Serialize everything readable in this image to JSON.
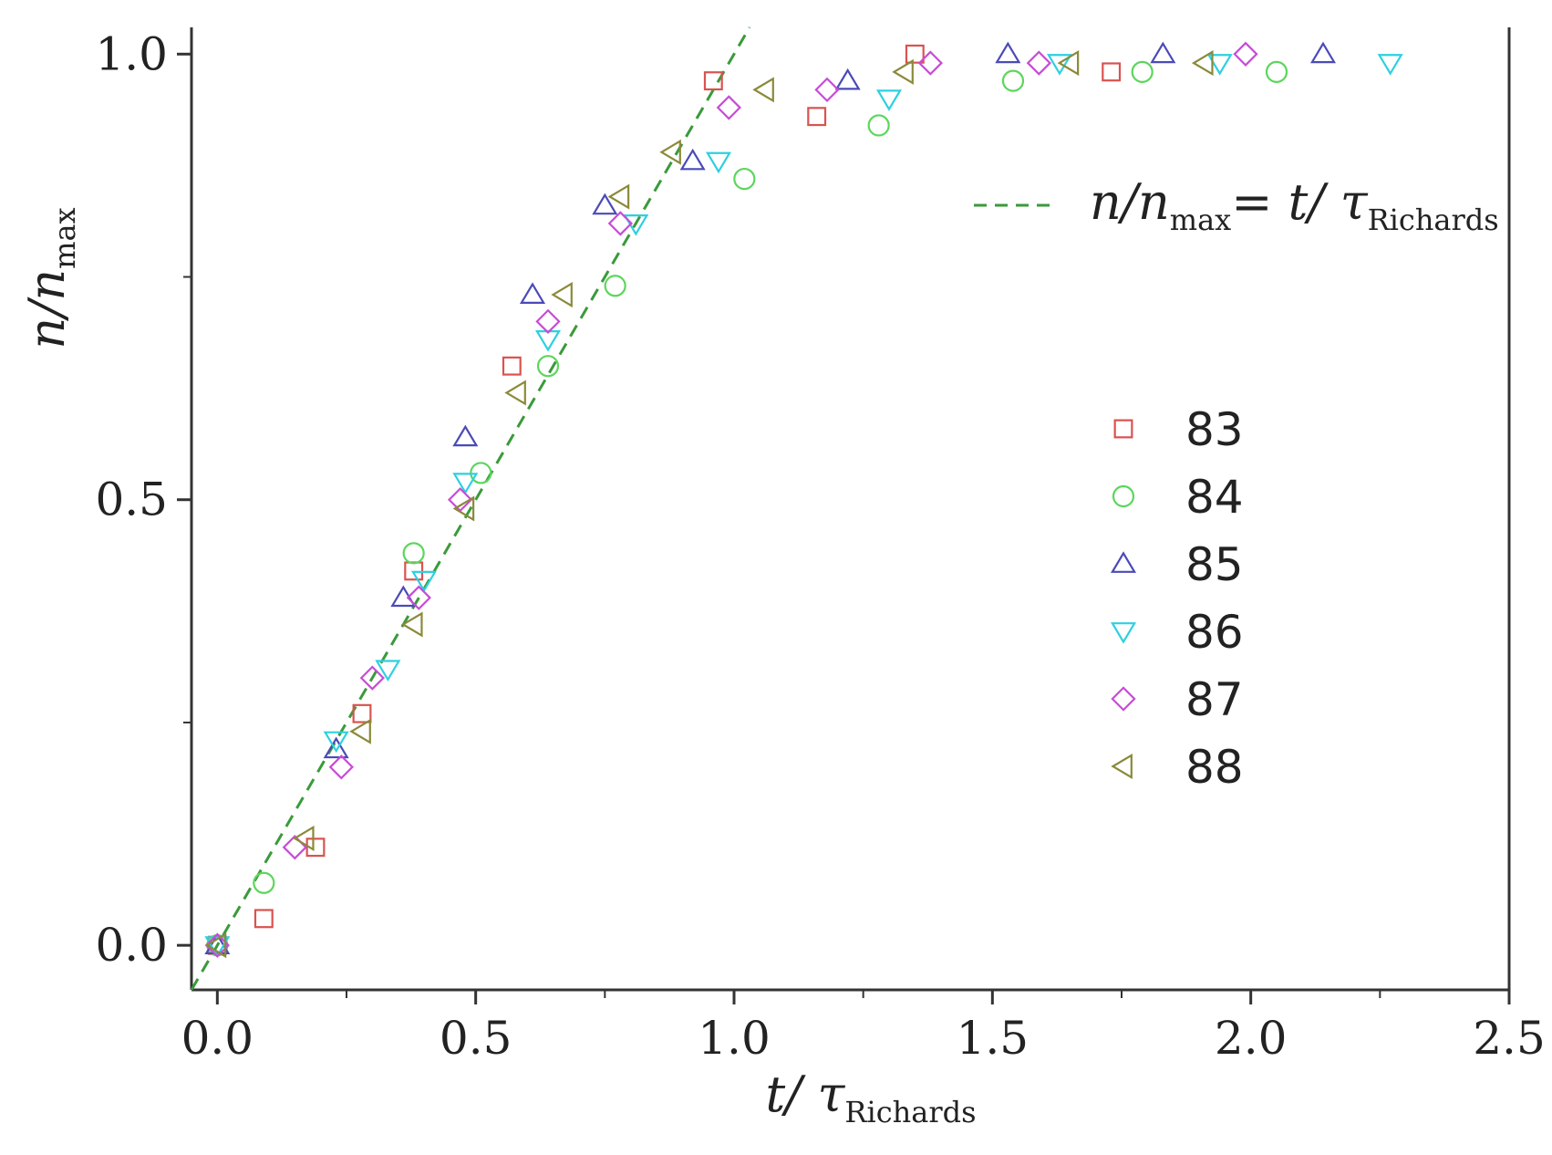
{
  "chart_data": {
    "type": "scatter",
    "xlabel": {
      "main": "t/ τ",
      "sub": "Richards"
    },
    "ylabel": {
      "main": "n/n",
      "sub": "max"
    },
    "xlim": [
      -0.05,
      2.5
    ],
    "ylim": [
      -0.05,
      1.03
    ],
    "x_ticks": [
      0.0,
      0.5,
      1.0,
      1.5,
      2.0,
      2.5
    ],
    "x_tick_labels": [
      "0.0",
      "0.5",
      "1.0",
      "1.5",
      "2.0",
      "2.5"
    ],
    "y_ticks": [
      0.0,
      0.5,
      1.0
    ],
    "y_tick_labels": [
      "0.0",
      "0.5",
      "1.0"
    ],
    "grid": false,
    "legend_position": "right",
    "fit_line": {
      "label": {
        "a": "n/n",
        "a_sub": "max",
        "b": "= t/ τ",
        "b_sub": "Richards"
      },
      "slope": 1,
      "intercept": 0,
      "color": "#3a9a3a",
      "style": "dashed"
    },
    "series": [
      {
        "name": "83",
        "marker": "square",
        "color": "#d9534f",
        "points": [
          [
            0.0,
            0.0
          ],
          [
            0.09,
            0.03
          ],
          [
            0.19,
            0.11
          ],
          [
            0.28,
            0.26
          ],
          [
            0.38,
            0.42
          ],
          [
            0.57,
            0.65
          ],
          [
            0.96,
            0.97
          ],
          [
            1.16,
            0.93
          ],
          [
            1.35,
            1.0
          ],
          [
            1.73,
            0.98
          ]
        ]
      },
      {
        "name": "84",
        "marker": "circle",
        "color": "#5cd65c",
        "points": [
          [
            0.0,
            0.0
          ],
          [
            0.09,
            0.07
          ],
          [
            0.38,
            0.44
          ],
          [
            0.51,
            0.53
          ],
          [
            0.64,
            0.65
          ],
          [
            0.77,
            0.74
          ],
          [
            1.02,
            0.86
          ],
          [
            1.28,
            0.92
          ],
          [
            1.54,
            0.97
          ],
          [
            1.79,
            0.98
          ],
          [
            2.05,
            0.98
          ]
        ]
      },
      {
        "name": "85",
        "marker": "triangle-up",
        "color": "#4a4ab8",
        "points": [
          [
            0.0,
            0.0
          ],
          [
            0.23,
            0.22
          ],
          [
            0.36,
            0.39
          ],
          [
            0.48,
            0.57
          ],
          [
            0.61,
            0.73
          ],
          [
            0.75,
            0.83
          ],
          [
            0.92,
            0.88
          ],
          [
            1.22,
            0.97
          ],
          [
            1.53,
            1.0
          ],
          [
            1.83,
            1.0
          ],
          [
            2.14,
            1.0
          ]
        ]
      },
      {
        "name": "86",
        "marker": "triangle-down",
        "color": "#2ed0e0",
        "points": [
          [
            0.0,
            0.0
          ],
          [
            0.23,
            0.23
          ],
          [
            0.33,
            0.31
          ],
          [
            0.4,
            0.41
          ],
          [
            0.48,
            0.52
          ],
          [
            0.64,
            0.68
          ],
          [
            0.81,
            0.81
          ],
          [
            0.97,
            0.88
          ],
          [
            1.3,
            0.95
          ],
          [
            1.63,
            0.99
          ],
          [
            1.94,
            0.99
          ],
          [
            2.27,
            0.99
          ]
        ]
      },
      {
        "name": "87",
        "marker": "diamond",
        "color": "#c84bd6",
        "points": [
          [
            0.0,
            0.0
          ],
          [
            0.15,
            0.11
          ],
          [
            0.24,
            0.2
          ],
          [
            0.3,
            0.3
          ],
          [
            0.39,
            0.39
          ],
          [
            0.47,
            0.5
          ],
          [
            0.64,
            0.7
          ],
          [
            0.78,
            0.81
          ],
          [
            0.99,
            0.94
          ],
          [
            1.18,
            0.96
          ],
          [
            1.38,
            0.99
          ],
          [
            1.59,
            0.99
          ],
          [
            1.99,
            1.0
          ]
        ]
      },
      {
        "name": "88",
        "marker": "triangle-left",
        "color": "#8a8a3a",
        "points": [
          [
            0.0,
            0.0
          ],
          [
            0.17,
            0.12
          ],
          [
            0.28,
            0.24
          ],
          [
            0.38,
            0.36
          ],
          [
            0.48,
            0.49
          ],
          [
            0.58,
            0.62
          ],
          [
            0.67,
            0.73
          ],
          [
            0.78,
            0.84
          ],
          [
            0.88,
            0.89
          ],
          [
            1.06,
            0.96
          ],
          [
            1.33,
            0.98
          ],
          [
            1.65,
            0.99
          ],
          [
            1.91,
            0.99
          ]
        ]
      }
    ]
  }
}
